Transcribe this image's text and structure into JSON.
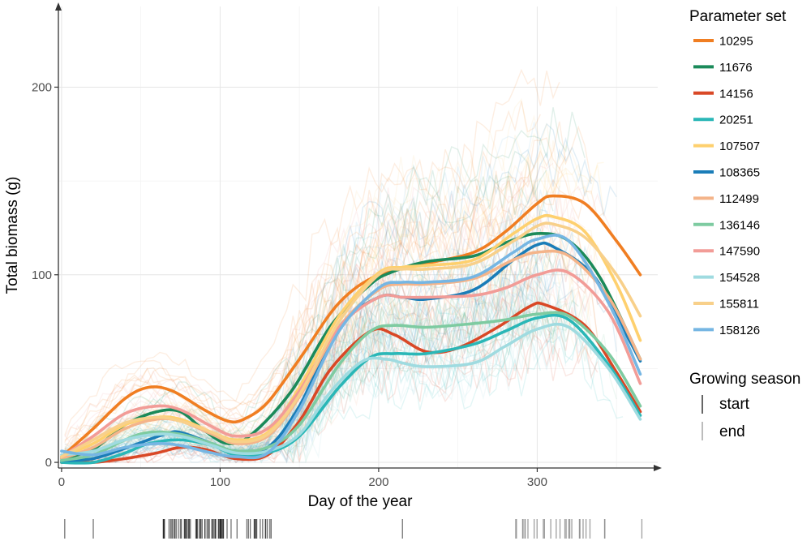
{
  "chart_data": {
    "type": "line",
    "xlabel": "Day of the year",
    "ylabel": "Total biomass (g)",
    "xlim": [
      -2,
      376
    ],
    "ylim": [
      -3,
      243
    ],
    "x_ticks": [
      0,
      100,
      200,
      300
    ],
    "y_ticks": [
      0,
      100,
      200
    ],
    "grid": true,
    "legend": {
      "title": "Parameter set",
      "placement": "right",
      "entries": [
        "10295",
        "11676",
        "14156",
        "20251",
        "107507",
        "108365",
        "112499",
        "136146",
        "147590",
        "154528",
        "155811",
        "158126"
      ]
    },
    "series": [
      {
        "name": "10295",
        "color": "#f07e22",
        "x": [
          0,
          20,
          40,
          55,
          70,
          90,
          105,
          115,
          130,
          150,
          175,
          200,
          230,
          260,
          280,
          300,
          310,
          330,
          350,
          365
        ],
        "values": [
          3,
          18,
          34,
          40,
          38,
          28,
          22,
          23,
          32,
          55,
          85,
          100,
          106,
          112,
          123,
          138,
          142,
          138,
          118,
          100
        ]
      },
      {
        "name": "11676",
        "color": "#1b8a5a",
        "x": [
          0,
          20,
          40,
          60,
          75,
          90,
          105,
          120,
          145,
          170,
          195,
          210,
          230,
          260,
          280,
          300,
          320,
          340,
          365
        ],
        "values": [
          2,
          7,
          20,
          27,
          27,
          17,
          10,
          15,
          38,
          73,
          95,
          102,
          107,
          110,
          117,
          122,
          118,
          98,
          55
        ]
      },
      {
        "name": "14156",
        "color": "#d94826",
        "x": [
          0,
          20,
          40,
          60,
          75,
          90,
          110,
          130,
          150,
          170,
          195,
          210,
          230,
          250,
          275,
          295,
          305,
          330,
          350,
          365
        ],
        "values": [
          0,
          0,
          2,
          5,
          8,
          7,
          2,
          4,
          22,
          50,
          70,
          68,
          59,
          61,
          72,
          83,
          84,
          73,
          48,
          27
        ]
      },
      {
        "name": "20251",
        "color": "#2ab7b7",
        "x": [
          0,
          20,
          40,
          55,
          75,
          95,
          110,
          130,
          150,
          175,
          195,
          210,
          230,
          260,
          280,
          300,
          320,
          345,
          365
        ],
        "values": [
          0,
          0,
          5,
          10,
          12,
          9,
          4,
          5,
          14,
          40,
          56,
          58,
          58,
          63,
          70,
          77,
          76,
          52,
          25
        ]
      },
      {
        "name": "107507",
        "color": "#fed06e",
        "x": [
          0,
          20,
          40,
          60,
          75,
          95,
          110,
          130,
          150,
          175,
          200,
          215,
          230,
          260,
          285,
          300,
          310,
          330,
          350,
          365
        ],
        "values": [
          3,
          10,
          20,
          24,
          23,
          16,
          12,
          16,
          40,
          78,
          101,
          104,
          105,
          108,
          122,
          130,
          131,
          123,
          95,
          65
        ]
      },
      {
        "name": "108365",
        "color": "#1a7db8",
        "x": [
          0,
          20,
          45,
          65,
          75,
          95,
          110,
          130,
          150,
          175,
          200,
          215,
          230,
          260,
          285,
          300,
          310,
          335,
          355,
          365
        ],
        "values": [
          1,
          2,
          9,
          15,
          16,
          10,
          6,
          8,
          30,
          72,
          88,
          88,
          87,
          92,
          108,
          116,
          115,
          100,
          70,
          54
        ]
      },
      {
        "name": "112499",
        "color": "#f4b48a",
        "x": [
          0,
          20,
          40,
          60,
          75,
          95,
          110,
          130,
          150,
          175,
          200,
          215,
          230,
          260,
          285,
          300,
          320,
          345,
          365
        ],
        "values": [
          2,
          8,
          18,
          23,
          22,
          15,
          10,
          14,
          35,
          72,
          92,
          95,
          95,
          98,
          108,
          112,
          110,
          88,
          55
        ]
      },
      {
        "name": "136146",
        "color": "#7ecba1",
        "x": [
          0,
          20,
          40,
          55,
          75,
          95,
          110,
          130,
          150,
          175,
          195,
          210,
          230,
          260,
          280,
          300,
          320,
          345,
          365
        ],
        "values": [
          1,
          4,
          12,
          16,
          15,
          10,
          6,
          8,
          20,
          52,
          70,
          73,
          72,
          74,
          76,
          79,
          78,
          58,
          30
        ]
      },
      {
        "name": "147590",
        "color": "#f29c97",
        "x": [
          0,
          20,
          40,
          60,
          75,
          95,
          110,
          130,
          150,
          175,
          200,
          215,
          230,
          260,
          280,
          300,
          320,
          345,
          365
        ],
        "values": [
          3,
          14,
          26,
          30,
          28,
          19,
          14,
          18,
          38,
          72,
          88,
          88,
          88,
          89,
          93,
          100,
          101,
          80,
          42
        ]
      },
      {
        "name": "154528",
        "color": "#9fdbe0",
        "x": [
          0,
          20,
          40,
          60,
          75,
          95,
          110,
          130,
          150,
          170,
          190,
          205,
          215,
          230,
          260,
          280,
          300,
          320,
          345,
          365
        ],
        "values": [
          4,
          6,
          12,
          15,
          14,
          9,
          5,
          6,
          15,
          38,
          54,
          55,
          53,
          51,
          53,
          62,
          71,
          72,
          50,
          23
        ]
      },
      {
        "name": "155811",
        "color": "#f8d08a",
        "x": [
          0,
          20,
          40,
          60,
          75,
          95,
          110,
          130,
          150,
          175,
          200,
          215,
          230,
          260,
          285,
          300,
          310,
          330,
          350,
          365
        ],
        "values": [
          3,
          12,
          21,
          24,
          22,
          16,
          11,
          15,
          36,
          75,
          100,
          103,
          103,
          106,
          118,
          126,
          127,
          120,
          100,
          78
        ]
      },
      {
        "name": "158126",
        "color": "#76b6e3",
        "x": [
          0,
          20,
          40,
          60,
          75,
          95,
          110,
          130,
          150,
          175,
          200,
          215,
          230,
          260,
          285,
          300,
          320,
          345,
          365
        ],
        "values": [
          6,
          4,
          8,
          10,
          9,
          5,
          3,
          5,
          28,
          70,
          93,
          96,
          96,
          99,
          112,
          119,
          118,
          85,
          47
        ]
      }
    ]
  },
  "growing_season": {
    "title": "Growing season",
    "start_label": "start",
    "end_label": "end",
    "start_color": "#000000",
    "end_color": "#a6a6a6"
  }
}
